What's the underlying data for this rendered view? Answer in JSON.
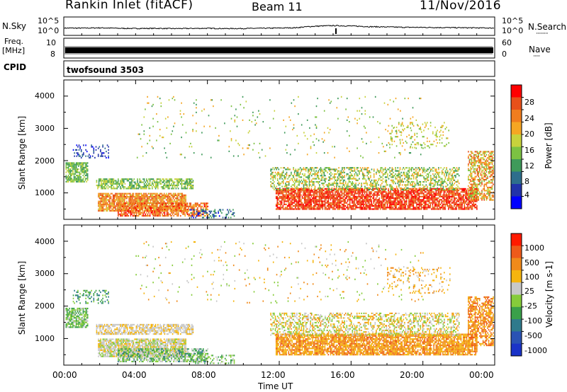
{
  "header": {
    "station": "Rankin Inlet (fitACF)",
    "beam": "Beam 11",
    "date": "11/Nov/2016"
  },
  "left_labels": {
    "nsky": "N.Sky",
    "freq": "Freq.",
    "freq_unit": "[MHz]",
    "cpid": "CPID"
  },
  "right_labels": {
    "nsearch": "N.Search",
    "nsearch_marker": "·········",
    "nave": "Nave",
    "nave_marker": "·····"
  },
  "cpid_text": "twofsound 3503",
  "colors": {
    "power": [
      "#0000ff",
      "#2233aa",
      "#2e6e8c",
      "#3f9a5a",
      "#7cc242",
      "#c8d23c",
      "#f5a623",
      "#f07d1e",
      "#e8501a",
      "#ff0000"
    ],
    "velocity": [
      "#1a33c8",
      "#2a52b4",
      "#2f7a8c",
      "#3aa04a",
      "#86cc3a",
      "#c8c8c8",
      "#f5b50f",
      "#f08a1a",
      "#ee5a1a",
      "#ff1a00"
    ]
  },
  "chart_data": [
    {
      "type": "line",
      "panel": "noise",
      "yticks_left": [
        "10^5",
        "10^0"
      ],
      "yticks_right": [
        "10^5",
        "10^0"
      ],
      "x": [
        "00:00",
        "01:00",
        "02:00",
        "03:00",
        "04:00",
        "05:00",
        "06:00",
        "07:00",
        "08:00",
        "09:00",
        "10:00",
        "11:00",
        "12:00",
        "13:00",
        "14:00",
        "15:00",
        "16:00",
        "17:00",
        "18:00",
        "19:00",
        "20:00",
        "21:00",
        "22:00",
        "23:00",
        "24:00"
      ],
      "series": [
        {
          "values": [
            30,
            28,
            35,
            25,
            22,
            24,
            20,
            22,
            25,
            20,
            22,
            25,
            30,
            40,
            120,
            200,
            150,
            90,
            70,
            55,
            50,
            45,
            40,
            35,
            30
          ]
        }
      ]
    },
    {
      "type": "line",
      "panel": "freq",
      "ylabel": "Freq. [MHz]",
      "yticks_left": [
        "10",
        "8"
      ],
      "yticks_right": [
        "60",
        "0"
      ],
      "series": [
        {
          "values": [
            10
          ]
        }
      ]
    },
    {
      "type": "heatmap",
      "panel": "power",
      "xlabel": "Time UT",
      "ylabel": "Slant Range [km]",
      "xticks": [
        "00:00",
        "04:00",
        "08:00",
        "12:00",
        "16:00",
        "20:00",
        "00:00"
      ],
      "yticks": [
        "1000",
        "2000",
        "3000",
        "4000"
      ],
      "ylim": [
        180,
        4500
      ],
      "colorbar_label": "Power [dB]",
      "colorbar_ticks": [
        "4",
        "8",
        "12",
        "16",
        "20",
        "24",
        "28"
      ],
      "colorbar_range": [
        0,
        30
      ]
    },
    {
      "type": "heatmap",
      "panel": "velocity",
      "xlabel": "Time UT",
      "ylabel": "Slant Range [km]",
      "xticks": [
        "00:00",
        "04:00",
        "08:00",
        "12:00",
        "16:00",
        "20:00",
        "00:00"
      ],
      "yticks": [
        "1000",
        "2000",
        "3000",
        "4000"
      ],
      "ylim": [
        180,
        4500
      ],
      "colorbar_label": "Velocity [m s-1]",
      "colorbar_ticks": [
        "1000",
        "500",
        "100",
        "25",
        "-25",
        "-100",
        "-500",
        "-1000"
      ]
    }
  ],
  "x_axis_title": "Time UT"
}
